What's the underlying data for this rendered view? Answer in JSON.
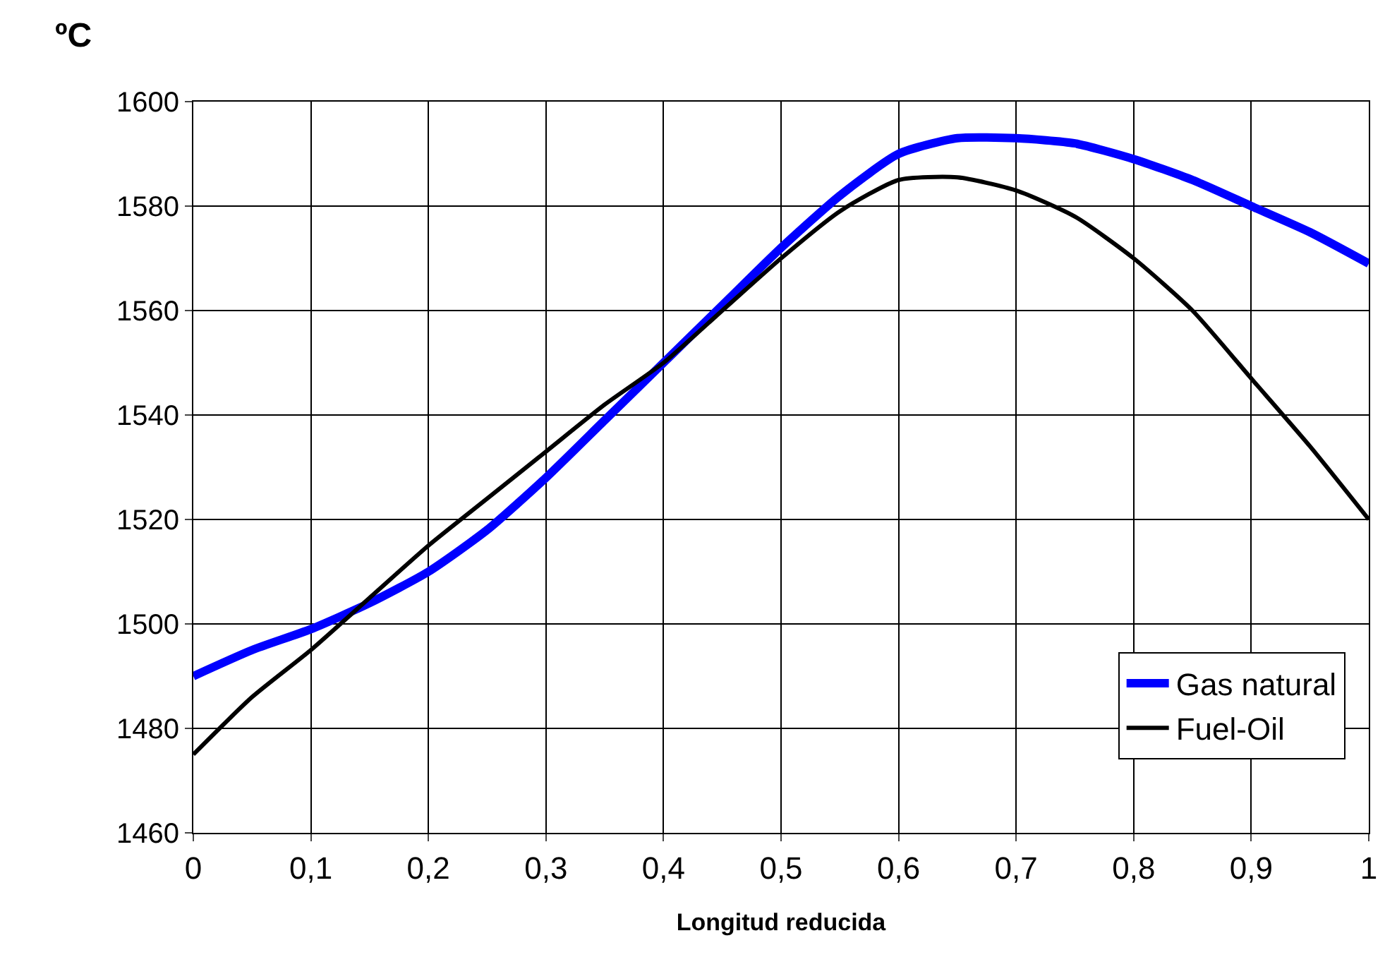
{
  "chart_data": {
    "type": "line",
    "xlabel": "Longitud reducida",
    "ylabel": "ºC",
    "x": [
      0,
      0.05,
      0.1,
      0.15,
      0.2,
      0.25,
      0.3,
      0.35,
      0.4,
      0.45,
      0.5,
      0.55,
      0.6,
      0.65,
      0.7,
      0.75,
      0.8,
      0.85,
      0.9,
      0.95,
      1
    ],
    "series": [
      {
        "name": "Gas natural",
        "color": "#0000ff",
        "values": [
          1490,
          1495,
          1499,
          1504,
          1510,
          1518,
          1528,
          1539,
          1550,
          1561,
          1572,
          1582,
          1590,
          1593,
          1593,
          1592,
          1589,
          1585,
          1580,
          1575,
          1569
        ]
      },
      {
        "name": "Fuel-Oil",
        "color": "#000000",
        "values": [
          1475,
          1486,
          1495,
          1505,
          1515,
          1524,
          1533,
          1542,
          1550,
          1560,
          1570,
          1579,
          1585,
          1585.5,
          1583,
          1578,
          1570,
          1560,
          1547,
          1534,
          1520
        ]
      }
    ],
    "xlim": [
      0,
      1
    ],
    "xticks": [
      0,
      {
        "value": 0.1,
        "label": "0,1"
      },
      {
        "value": 0.2,
        "label": "0,2"
      },
      {
        "value": 0.3,
        "label": "0,3"
      },
      {
        "value": 0.4,
        "label": "0,4"
      },
      {
        "value": 0.5,
        "label": "0,5"
      },
      {
        "value": 0.6,
        "label": "0,6"
      },
      {
        "value": 0.7,
        "label": "0,7"
      },
      {
        "value": 0.8,
        "label": "0,8"
      },
      {
        "value": 0.9,
        "label": "0,9"
      },
      1
    ],
    "ylim": [
      1460,
      1600
    ],
    "yticks": [
      1460,
      1480,
      1500,
      1520,
      1540,
      1560,
      1580,
      1600
    ],
    "grid": true,
    "legend": "bottom right",
    "marker": "none",
    "line_style": "solid"
  }
}
